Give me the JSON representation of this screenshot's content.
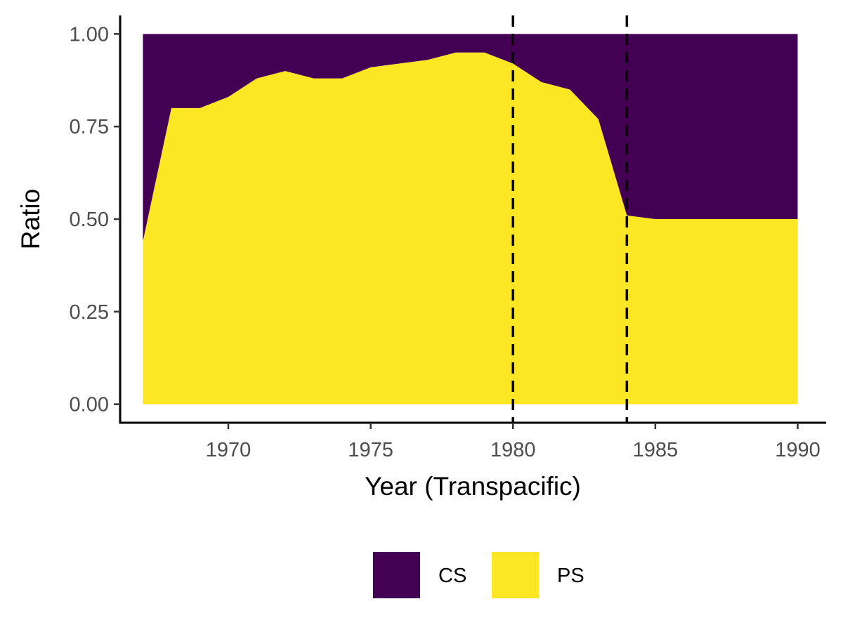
{
  "chart_data": {
    "type": "area",
    "stacking": "fill",
    "xlabel": "Year (Transpacific)",
    "ylabel": "Ratio",
    "xlim": [
      1966.2,
      1991.0
    ],
    "ylim": [
      -0.05,
      1.05
    ],
    "x_ticks": [
      1970,
      1975,
      1980,
      1985,
      1990
    ],
    "y_ticks": [
      0,
      0.25,
      0.5,
      0.75,
      1.0
    ],
    "y_tick_labels": [
      "0.00",
      "0.25",
      "0.50",
      "0.75",
      "1.00"
    ],
    "x_tick_labels": [
      "1970",
      "1975",
      "1980",
      "1985",
      "1990"
    ],
    "grid": false,
    "legend_position": "bottom",
    "x": [
      1967,
      1968,
      1969,
      1970,
      1971,
      1972,
      1973,
      1974,
      1975,
      1976,
      1977,
      1978,
      1979,
      1980,
      1981,
      1982,
      1983,
      1984,
      1985,
      1986,
      1987,
      1988,
      1989,
      1990
    ],
    "series": [
      {
        "name": "CS",
        "color": "#440154",
        "values": [
          0.56,
          0.2,
          0.2,
          0.17,
          0.12,
          0.1,
          0.12,
          0.12,
          0.09,
          0.08,
          0.07,
          0.05,
          0.05,
          0.08,
          0.13,
          0.15,
          0.23,
          0.49,
          0.5,
          0.5,
          0.5,
          0.5,
          0.5,
          0.5
        ]
      },
      {
        "name": "PS",
        "color": "#FDE725",
        "values": [
          0.44,
          0.8,
          0.8,
          0.83,
          0.88,
          0.9,
          0.88,
          0.88,
          0.91,
          0.92,
          0.93,
          0.95,
          0.95,
          0.92,
          0.87,
          0.85,
          0.77,
          0.51,
          0.5,
          0.5,
          0.5,
          0.5,
          0.5,
          0.5
        ]
      }
    ],
    "vertical_lines": [
      1980,
      1984
    ],
    "vertical_line_style": "dashed"
  }
}
